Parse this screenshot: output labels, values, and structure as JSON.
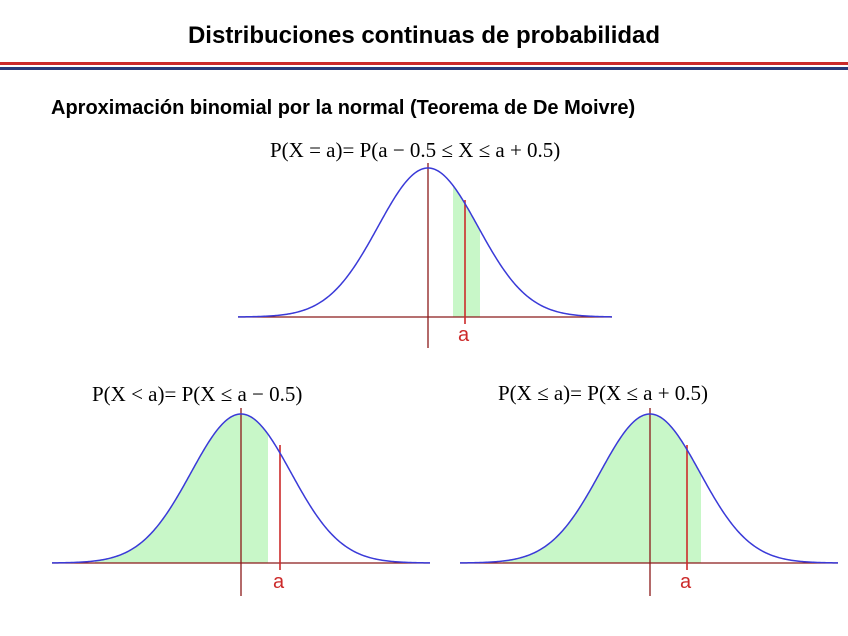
{
  "slide": {
    "title": "Distribuciones continuas de probabilidad",
    "subtitle": "Aproximación binomial por la normal (Teorema de De Moivre)",
    "colors": {
      "rule_red": "#cc2a2a",
      "rule_blue": "#2a3a7a",
      "curve": "#3a3ad8",
      "shade": "#c8f7c8",
      "marker": "#cc2a2a",
      "axis": "#8b1a1a"
    }
  },
  "panels": {
    "top": {
      "formula": "P(X = a)= P(a − 0.5 ≤ X ≤ a + 0.5)",
      "a_label": "a"
    },
    "left": {
      "formula": "P(X < a)= P(X ≤ a − 0.5)",
      "a_label": "a"
    },
    "right": {
      "formula": "P(X ≤ a)= P(X ≤ a + 0.5)",
      "a_label": "a"
    }
  }
}
